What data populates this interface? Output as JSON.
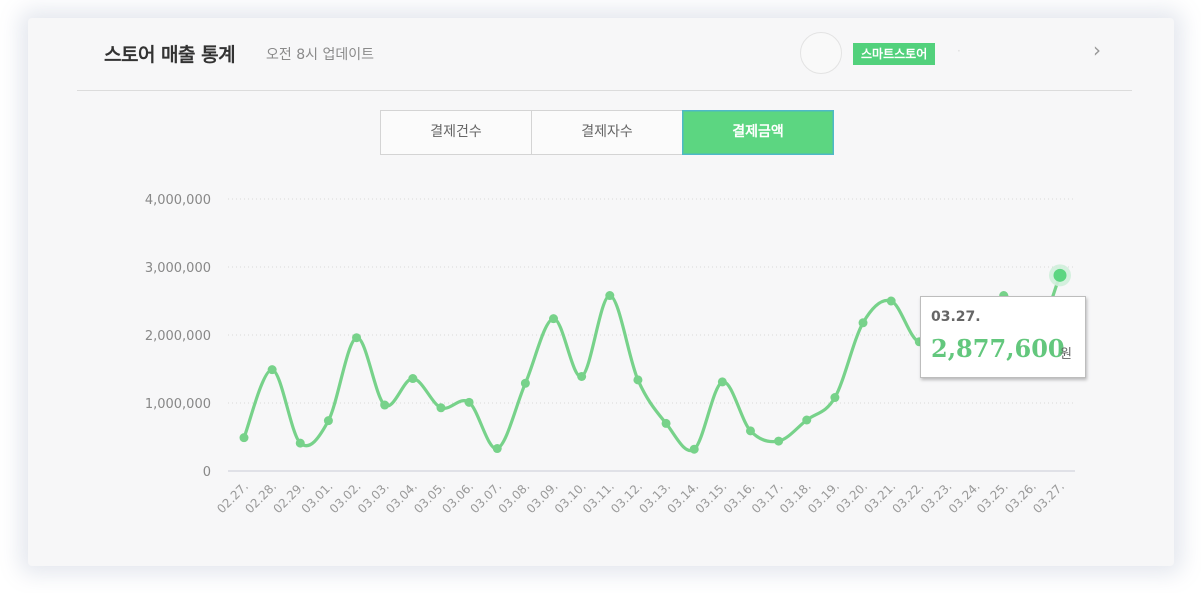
{
  "header": {
    "title": "스토어 매출 통계",
    "subtitle": "오전 8시 업데이트",
    "store_badge": "스마트스토어",
    "store_name": "·",
    "chevron": "›"
  },
  "tabs": [
    {
      "label": "결제건수",
      "active": false
    },
    {
      "label": "결제자수",
      "active": false
    },
    {
      "label": "결제금액",
      "active": true
    }
  ],
  "tooltip": {
    "date": "03.27.",
    "value": "2,877,600",
    "unit": "원"
  },
  "colors": {
    "line": "#77d28a",
    "accent": "#5cd681",
    "grid": "#d9d9d9"
  },
  "chart_data": {
    "type": "line",
    "categories": [
      "02.27.",
      "02.28.",
      "02.29.",
      "03.01.",
      "03.02.",
      "03.03.",
      "03.04.",
      "03.05.",
      "03.06.",
      "03.07.",
      "03.08.",
      "03.09.",
      "03.10.",
      "03.11.",
      "03.12.",
      "03.13.",
      "03.14.",
      "03.15.",
      "03.16.",
      "03.17.",
      "03.18.",
      "03.19.",
      "03.20.",
      "03.21.",
      "03.22.",
      "03.23.",
      "03.24.",
      "03.25.",
      "03.26.",
      "03.27."
    ],
    "values": [
      490000,
      1490000,
      410000,
      740000,
      1960000,
      970000,
      1360000,
      930000,
      1010000,
      330000,
      1290000,
      2240000,
      1390000,
      2580000,
      1340000,
      700000,
      320000,
      1310000,
      590000,
      440000,
      750000,
      1080000,
      2180000,
      2500000,
      1900000,
      2350000,
      1600000,
      2580000,
      1900000,
      2877600
    ],
    "yticks": [
      "4,000,000",
      "3,000,000",
      "2,000,000",
      "1,000,000",
      "0"
    ],
    "ylim": [
      0,
      4000000
    ],
    "grid": true,
    "highlight_index": 29
  }
}
